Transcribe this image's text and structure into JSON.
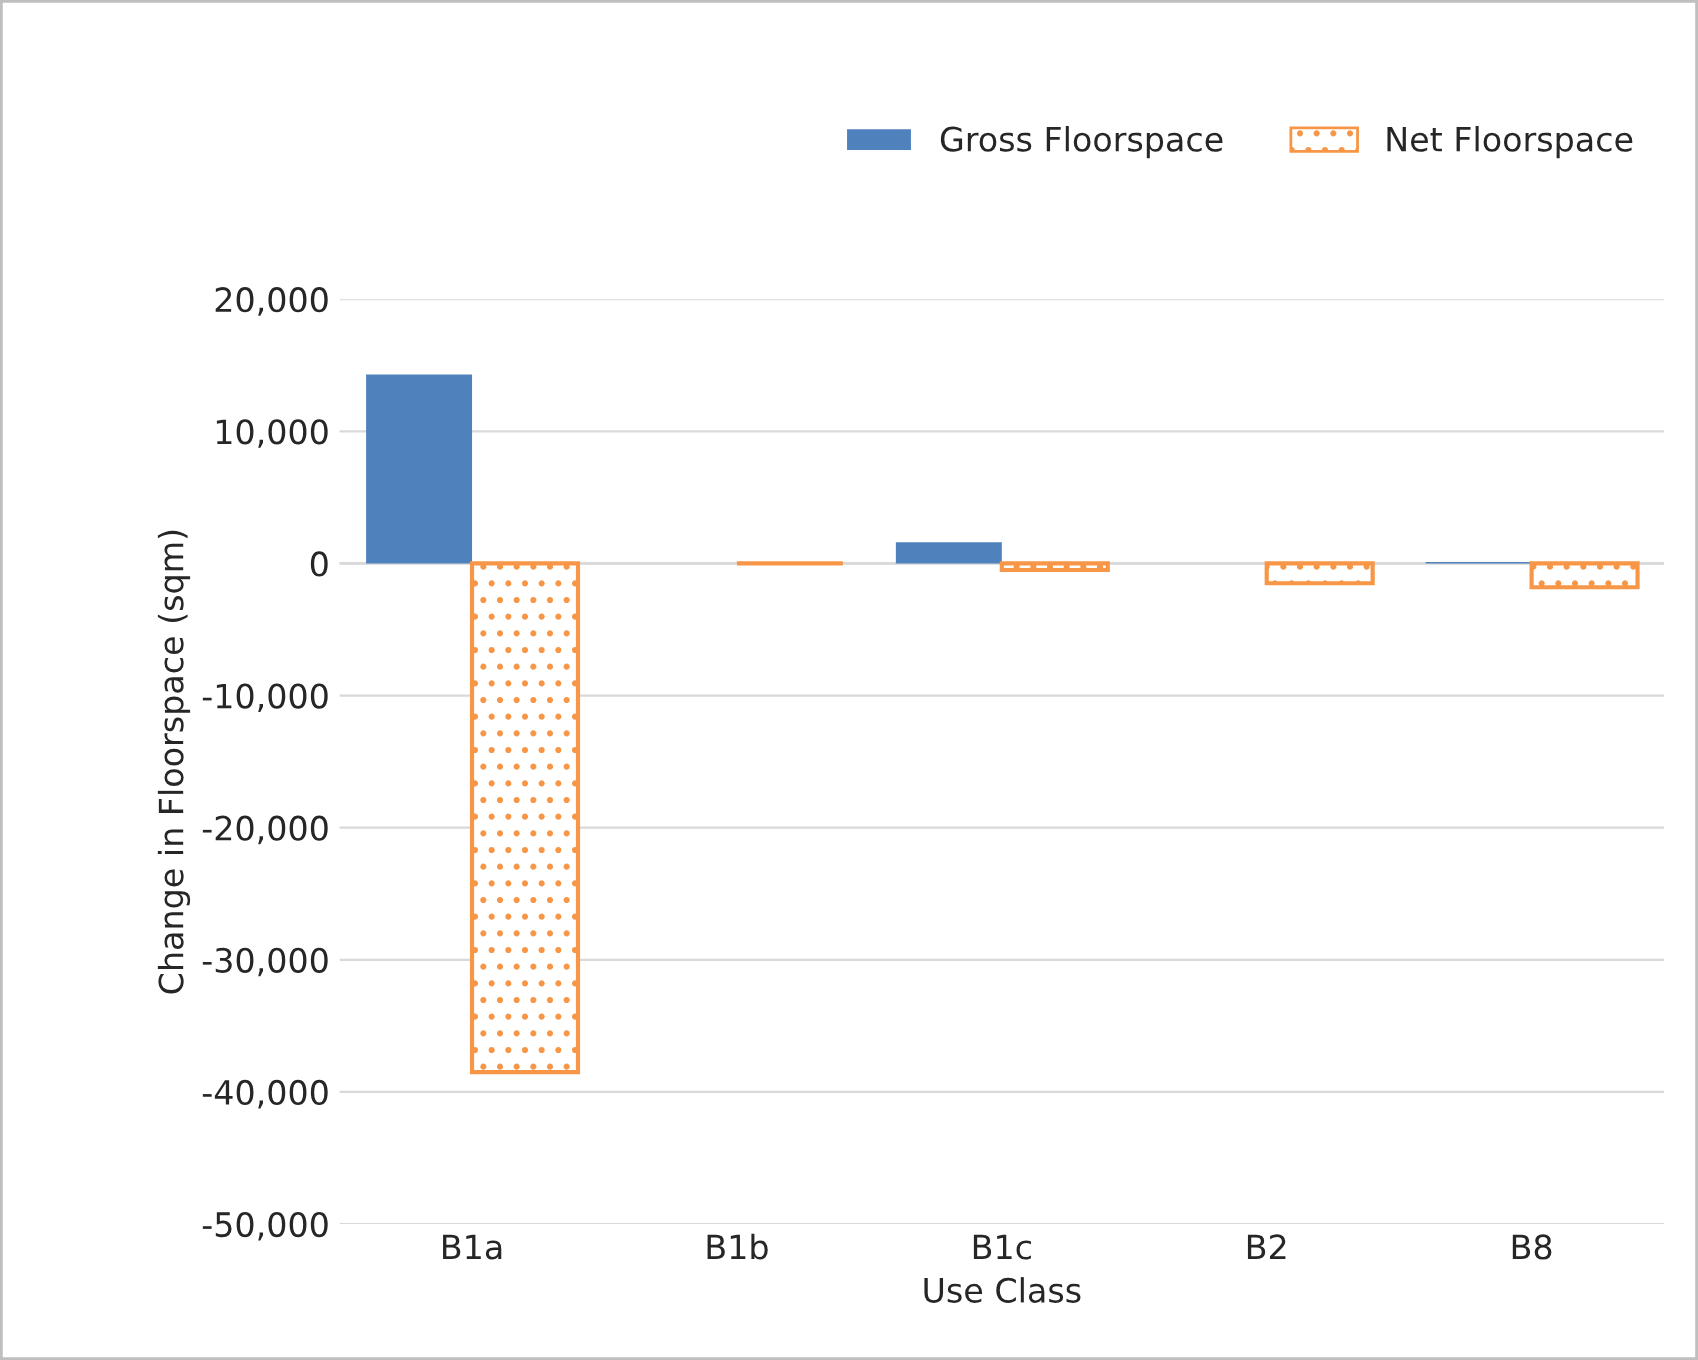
{
  "chart_data": {
    "type": "bar",
    "xlabel": "Use Class",
    "ylabel": "Change in Floorspace (sqm)",
    "categories": [
      "B1a",
      "B1b",
      "B1c",
      "B2",
      "B8"
    ],
    "series": [
      {
        "name": "Gross Floorspace",
        "color": "#4f81bd",
        "values": [
          14300,
          0,
          1600,
          0,
          100
        ]
      },
      {
        "name": "Net Floorspace",
        "color": "#f79646",
        "values": [
          -38500,
          0,
          -500,
          -1500,
          -1800
        ]
      }
    ],
    "ylim": [
      -50000,
      20000
    ],
    "yticks": [
      {
        "value": -50000,
        "label": "-50,000"
      },
      {
        "value": -40000,
        "label": "-40,000"
      },
      {
        "value": -30000,
        "label": "-30,000"
      },
      {
        "value": -20000,
        "label": "-20,000"
      },
      {
        "value": -10000,
        "label": "-10,000"
      },
      {
        "value": 0,
        "label": "0"
      },
      {
        "value": 10000,
        "label": "10,000"
      },
      {
        "value": 20000,
        "label": "20,000"
      }
    ],
    "grid": "y",
    "legend": "top right"
  }
}
